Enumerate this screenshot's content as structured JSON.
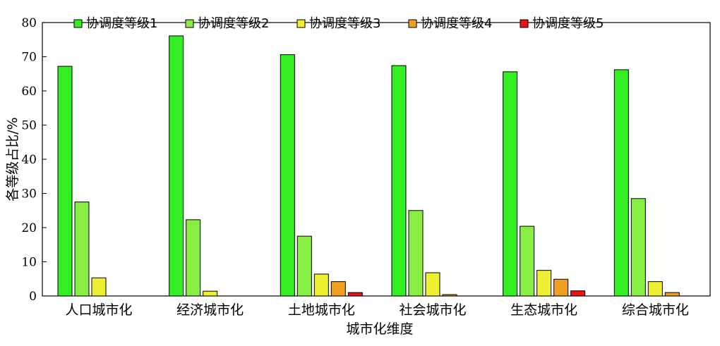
{
  "chart_data": {
    "type": "bar",
    "title": "",
    "xlabel": "城市化维度",
    "ylabel": "各等级占比/%",
    "ylim": [
      0,
      80
    ],
    "yticks": [
      0,
      10,
      20,
      30,
      40,
      50,
      60,
      70,
      80
    ],
    "grid": false,
    "legend_position": "top",
    "categories": [
      "人口城市化",
      "经济城市化",
      "土地城市化",
      "社会城市化",
      "生态城市化",
      "综合城市化"
    ],
    "series": [
      {
        "name": "协调度等级1",
        "color": "#33ee22",
        "values": [
          67.2,
          76.1,
          70.6,
          67.4,
          65.6,
          66.2
        ]
      },
      {
        "name": "协调度等级2",
        "color": "#88ee44",
        "values": [
          27.5,
          22.3,
          17.5,
          25.0,
          20.4,
          28.5
        ]
      },
      {
        "name": "协调度等级3",
        "color": "#eeee33",
        "values": [
          5.3,
          1.4,
          6.4,
          6.8,
          7.5,
          4.2
        ]
      },
      {
        "name": "协调度等级4",
        "color": "#f0a020",
        "values": [
          0,
          0,
          4.2,
          0.4,
          4.9,
          1.0
        ]
      },
      {
        "name": "协调度等级5",
        "color": "#ee1111",
        "values": [
          0,
          0,
          1.0,
          0,
          1.5,
          0
        ]
      }
    ]
  }
}
